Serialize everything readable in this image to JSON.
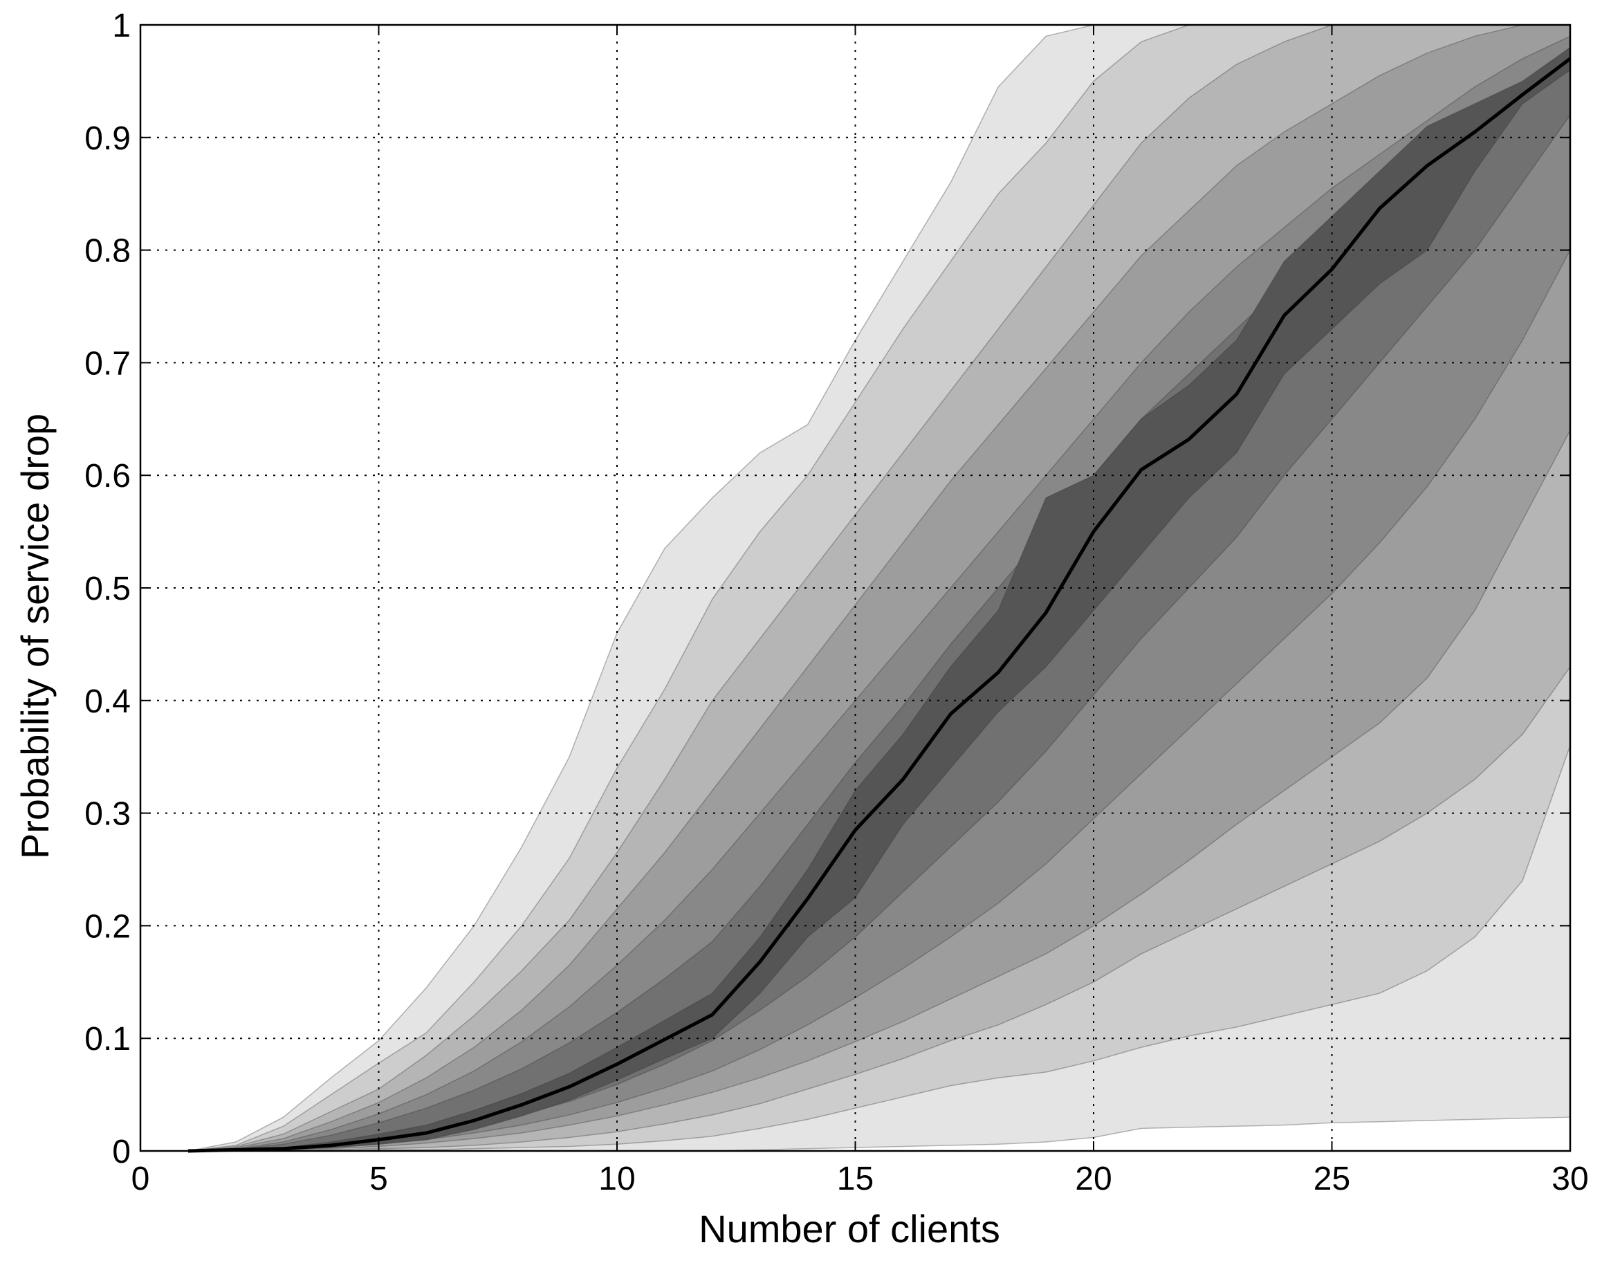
{
  "chart_data": {
    "type": "area",
    "title": "",
    "xlabel": "Number of clients",
    "ylabel": "Probability of service drop",
    "xlim": [
      0,
      30
    ],
    "ylim": [
      0,
      1
    ],
    "xticks": [
      0,
      5,
      10,
      15,
      20,
      25,
      30
    ],
    "yticks": [
      0,
      0.1,
      0.2,
      0.3,
      0.4,
      0.5,
      0.6,
      0.7,
      0.8,
      0.9,
      1
    ],
    "ytick_labels": [
      "0",
      "0.1",
      "0.2",
      "0.3",
      "0.4",
      "0.5",
      "0.6",
      "0.7",
      "0.8",
      "0.9",
      "1"
    ],
    "grid": true,
    "legend": "none",
    "fan_colors": [
      "#e4e4e4",
      "#cdcdcd",
      "#b5b5b5",
      "#9d9d9d",
      "#888888",
      "#717171",
      "#555555"
    ],
    "median_color": "#000000",
    "x": [
      1,
      2,
      3,
      4,
      5,
      6,
      7,
      8,
      9,
      10,
      11,
      12,
      13,
      14,
      15,
      16,
      17,
      18,
      19,
      20,
      21,
      22,
      23,
      24,
      25,
      26,
      27,
      28,
      29,
      30
    ],
    "median": [
      0,
      0.001,
      0.002,
      0.005,
      0.01,
      0.016,
      0.027,
      0.041,
      0.057,
      0.077,
      0.099,
      0.121,
      0.168,
      0.224,
      0.285,
      0.33,
      0.388,
      0.425,
      0.478,
      0.55,
      0.605,
      0.632,
      0.672,
      0.742,
      0.783,
      0.837,
      0.875,
      0.905,
      0.938,
      0.97
    ],
    "bands": [
      {
        "upper": [
          0,
          0.008,
          0.03,
          0.065,
          0.098,
          0.145,
          0.2,
          0.27,
          0.35,
          0.46,
          0.535,
          0.58,
          0.62,
          0.645,
          0.72,
          0.79,
          0.86,
          0.945,
          0.99,
          1,
          1,
          1,
          1,
          1,
          1,
          1,
          1,
          1,
          1,
          1
        ],
        "lower": [
          0,
          0,
          0,
          0,
          0,
          0,
          0,
          0,
          0,
          0,
          0,
          0,
          0.001,
          0.002,
          0.003,
          0.004,
          0.005,
          0.006,
          0.008,
          0.012,
          0.02,
          0.021,
          0.022,
          0.023,
          0.025,
          0.026,
          0.027,
          0.028,
          0.029,
          0.03
        ]
      },
      {
        "upper": [
          0,
          0.005,
          0.022,
          0.05,
          0.078,
          0.105,
          0.15,
          0.2,
          0.26,
          0.34,
          0.41,
          0.49,
          0.55,
          0.6,
          0.665,
          0.73,
          0.79,
          0.85,
          0.895,
          0.95,
          0.985,
          1,
          1,
          1,
          1,
          1,
          1,
          1,
          1,
          1
        ],
        "lower": [
          0,
          0,
          0,
          0,
          0.001,
          0.001,
          0.002,
          0.003,
          0.004,
          0.006,
          0.009,
          0.013,
          0.02,
          0.028,
          0.038,
          0.048,
          0.058,
          0.065,
          0.07,
          0.08,
          0.092,
          0.102,
          0.11,
          0.12,
          0.13,
          0.14,
          0.16,
          0.19,
          0.24,
          0.36
        ]
      },
      {
        "upper": [
          0,
          0.004,
          0.015,
          0.035,
          0.055,
          0.085,
          0.12,
          0.16,
          0.205,
          0.265,
          0.33,
          0.4,
          0.455,
          0.51,
          0.565,
          0.62,
          0.675,
          0.73,
          0.785,
          0.84,
          0.895,
          0.935,
          0.965,
          0.985,
          1,
          1,
          1,
          1,
          1,
          1
        ],
        "lower": [
          0,
          0,
          0,
          0.001,
          0.002,
          0.003,
          0.005,
          0.008,
          0.012,
          0.017,
          0.024,
          0.032,
          0.042,
          0.055,
          0.068,
          0.082,
          0.098,
          0.112,
          0.13,
          0.15,
          0.175,
          0.195,
          0.215,
          0.235,
          0.255,
          0.275,
          0.3,
          0.33,
          0.37,
          0.43
        ]
      },
      {
        "upper": [
          0,
          0.003,
          0.011,
          0.026,
          0.043,
          0.065,
          0.092,
          0.125,
          0.165,
          0.215,
          0.265,
          0.32,
          0.375,
          0.43,
          0.485,
          0.54,
          0.595,
          0.645,
          0.695,
          0.745,
          0.795,
          0.835,
          0.875,
          0.905,
          0.93,
          0.955,
          0.975,
          0.99,
          1,
          1
        ],
        "lower": [
          0,
          0,
          0.001,
          0.002,
          0.004,
          0.007,
          0.011,
          0.016,
          0.023,
          0.031,
          0.041,
          0.052,
          0.065,
          0.08,
          0.097,
          0.115,
          0.135,
          0.155,
          0.175,
          0.2,
          0.228,
          0.258,
          0.29,
          0.32,
          0.35,
          0.38,
          0.42,
          0.48,
          0.56,
          0.64
        ]
      },
      {
        "upper": [
          0,
          0.002,
          0.008,
          0.019,
          0.033,
          0.05,
          0.071,
          0.097,
          0.128,
          0.165,
          0.205,
          0.25,
          0.3,
          0.35,
          0.4,
          0.45,
          0.5,
          0.55,
          0.6,
          0.65,
          0.7,
          0.745,
          0.785,
          0.82,
          0.855,
          0.885,
          0.915,
          0.945,
          0.97,
          0.99
        ],
        "lower": [
          0,
          0,
          0.001,
          0.003,
          0.006,
          0.01,
          0.016,
          0.023,
          0.032,
          0.043,
          0.056,
          0.071,
          0.09,
          0.112,
          0.136,
          0.162,
          0.19,
          0.22,
          0.255,
          0.295,
          0.335,
          0.375,
          0.415,
          0.455,
          0.495,
          0.54,
          0.59,
          0.65,
          0.72,
          0.8
        ]
      },
      {
        "upper": [
          0,
          0.0015,
          0.006,
          0.014,
          0.025,
          0.038,
          0.054,
          0.073,
          0.096,
          0.123,
          0.153,
          0.186,
          0.235,
          0.29,
          0.345,
          0.395,
          0.45,
          0.5,
          0.55,
          0.6,
          0.65,
          0.69,
          0.73,
          0.77,
          0.81,
          0.85,
          0.885,
          0.915,
          0.945,
          0.98
        ],
        "lower": [
          0,
          0.0005,
          0.002,
          0.005,
          0.009,
          0.014,
          0.022,
          0.032,
          0.044,
          0.059,
          0.077,
          0.098,
          0.125,
          0.155,
          0.19,
          0.23,
          0.27,
          0.31,
          0.355,
          0.405,
          0.455,
          0.5,
          0.545,
          0.6,
          0.65,
          0.7,
          0.75,
          0.8,
          0.86,
          0.92
        ]
      },
      {
        "upper": [
          0,
          0.0012,
          0.003,
          0.008,
          0.015,
          0.023,
          0.036,
          0.051,
          0.069,
          0.092,
          0.116,
          0.14,
          0.19,
          0.25,
          0.32,
          0.37,
          0.43,
          0.48,
          0.58,
          0.6,
          0.65,
          0.68,
          0.72,
          0.79,
          0.83,
          0.87,
          0.91,
          0.93,
          0.95,
          0.98
        ],
        "lower": [
          0,
          0.0008,
          0.001,
          0.003,
          0.006,
          0.01,
          0.019,
          0.031,
          0.045,
          0.063,
          0.082,
          0.1,
          0.14,
          0.19,
          0.225,
          0.29,
          0.34,
          0.39,
          0.43,
          0.48,
          0.53,
          0.58,
          0.62,
          0.69,
          0.73,
          0.77,
          0.8,
          0.87,
          0.93,
          0.96
        ]
      }
    ]
  }
}
